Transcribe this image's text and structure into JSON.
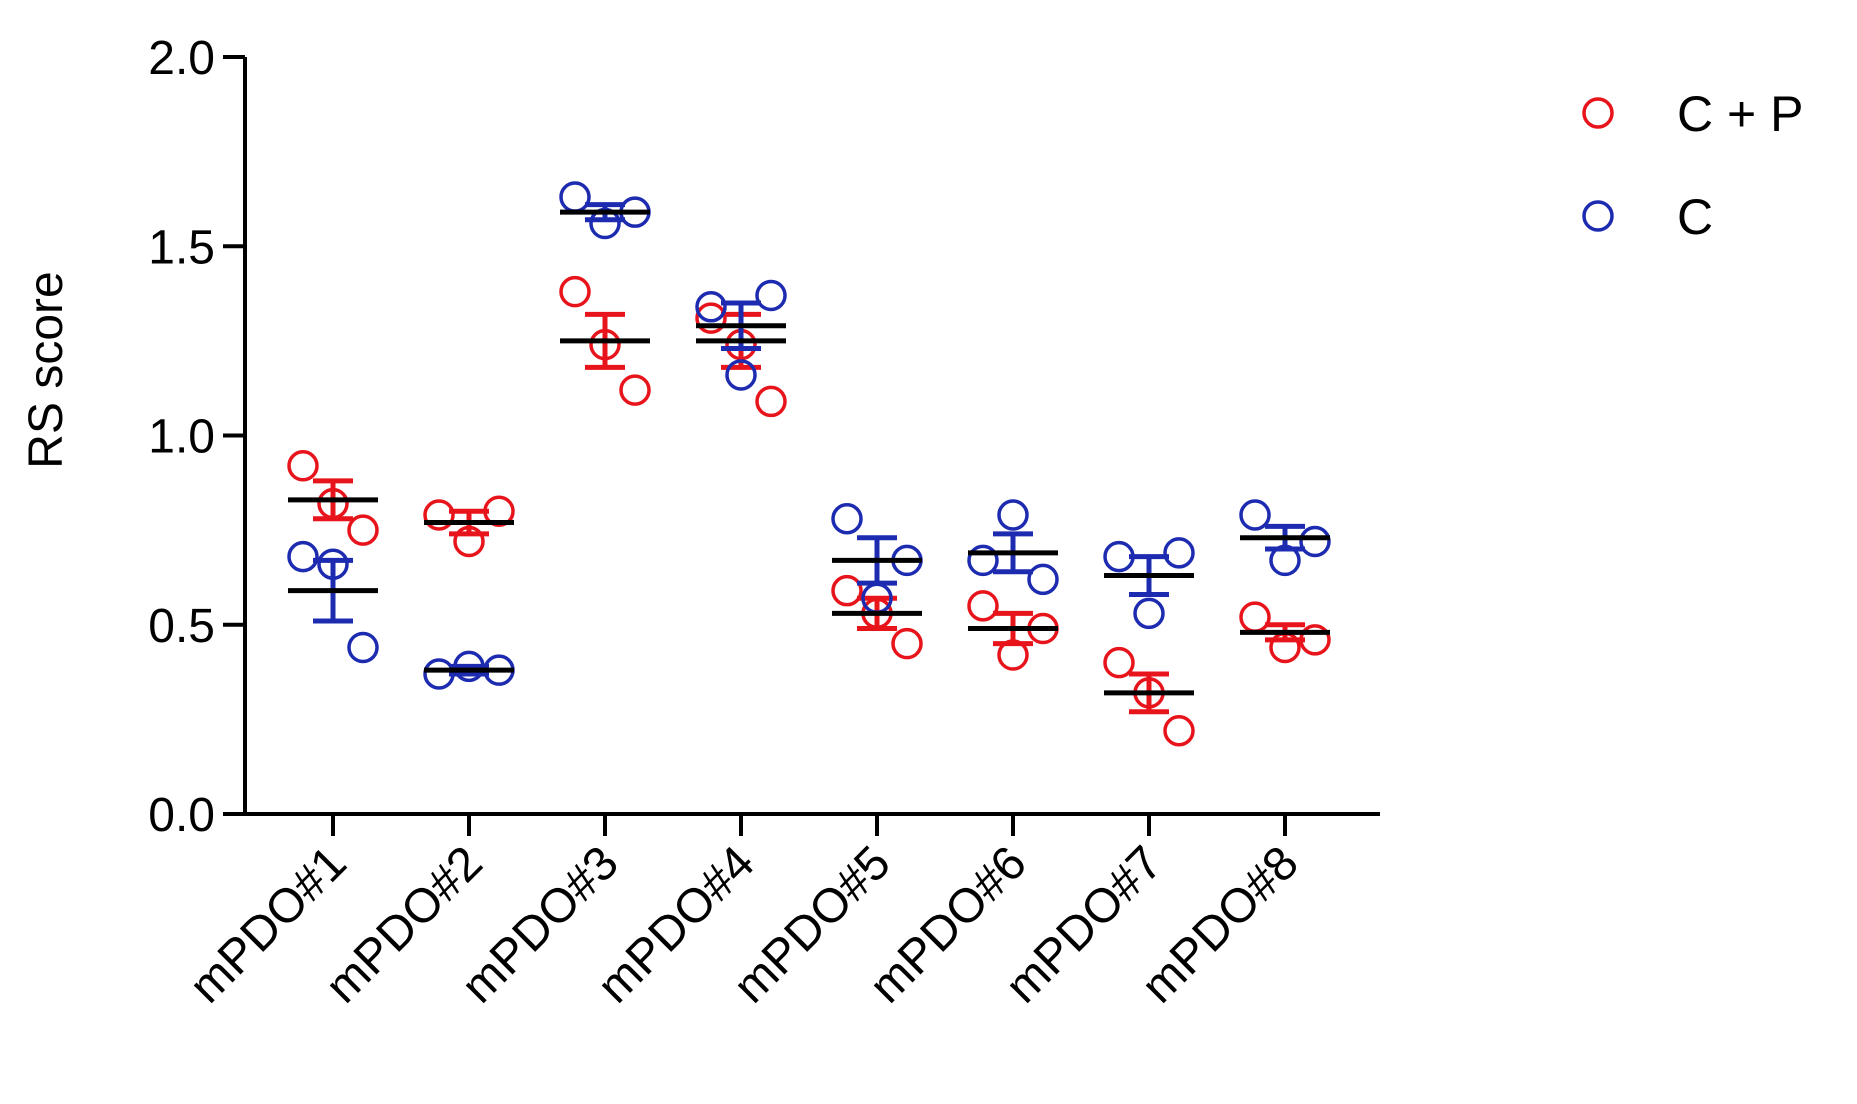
{
  "chart_data": {
    "type": "scatter",
    "ylabel": "RS score",
    "ylim": [
      0,
      2.0
    ],
    "yticks": [
      "0.0",
      "0.5",
      "1.0",
      "1.5",
      "2.0"
    ],
    "categories": [
      "mPDO#1",
      "mPDO#2",
      "mPDO#3",
      "mPDO#4",
      "mPDO#5",
      "mPDO#6",
      "mPDO#7",
      "mPDO#8"
    ],
    "legend_position": "top-right",
    "mean_line_color": "#000000",
    "series": [
      {
        "name": "C + P",
        "color": "#e8141b",
        "points": [
          [
            0.92,
            0.82,
            0.75
          ],
          [
            0.79,
            0.72,
            0.8
          ],
          [
            1.38,
            1.24,
            1.12
          ],
          [
            1.31,
            1.24,
            1.09
          ],
          [
            0.59,
            0.53,
            0.45
          ],
          [
            0.55,
            0.42,
            0.49
          ],
          [
            0.4,
            0.32,
            0.22
          ],
          [
            0.52,
            0.44,
            0.46
          ]
        ],
        "mean": [
          0.83,
          0.77,
          1.25,
          1.25,
          0.53,
          0.49,
          0.32,
          0.48
        ],
        "sem": [
          0.05,
          0.03,
          0.07,
          0.07,
          0.04,
          0.04,
          0.05,
          0.02
        ]
      },
      {
        "name": "C",
        "color": "#1c2bb0",
        "points": [
          [
            0.68,
            0.66,
            0.44
          ],
          [
            0.37,
            0.39,
            0.38
          ],
          [
            1.63,
            1.56,
            1.59
          ],
          [
            1.34,
            1.16,
            1.37
          ],
          [
            0.78,
            0.57,
            0.67
          ],
          [
            0.67,
            0.79,
            0.62
          ],
          [
            0.68,
            0.53,
            0.69
          ],
          [
            0.79,
            0.67,
            0.72
          ]
        ],
        "mean": [
          0.59,
          0.38,
          1.59,
          1.29,
          0.67,
          0.69,
          0.63,
          0.73
        ],
        "sem": [
          0.08,
          0.01,
          0.02,
          0.06,
          0.06,
          0.05,
          0.05,
          0.03
        ]
      }
    ]
  }
}
